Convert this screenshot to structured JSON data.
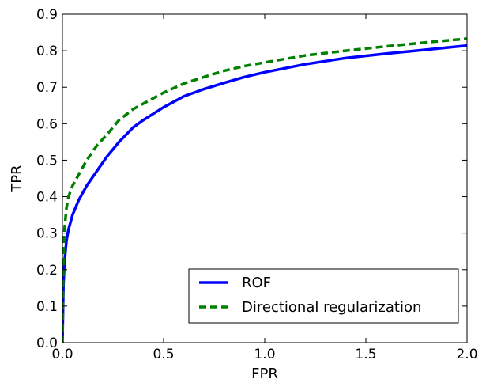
{
  "chart_data": {
    "type": "line",
    "title": "",
    "xlabel": "FPR",
    "ylabel": "TPR",
    "xlim": [
      0.0,
      2.0
    ],
    "ylim": [
      0.0,
      0.9
    ],
    "xticks": [
      0.0,
      0.5,
      1.0,
      1.5,
      2.0
    ],
    "xtick_labels": [
      "0.0",
      "0.5",
      "1.0",
      "1.5",
      "2.0"
    ],
    "yticks": [
      0.0,
      0.1,
      0.2,
      0.3,
      0.4,
      0.5,
      0.6,
      0.7,
      0.8,
      0.9
    ],
    "ytick_labels": [
      "0.0",
      "0.1",
      "0.2",
      "0.3",
      "0.4",
      "0.5",
      "0.6",
      "0.7",
      "0.8",
      "0.9"
    ],
    "grid": false,
    "legend_position": "lower-right",
    "series": [
      {
        "name": "ROF",
        "color": "#0000ff",
        "line_style": "solid",
        "x": [
          0.0,
          0.005,
          0.01,
          0.02,
          0.03,
          0.05,
          0.08,
          0.12,
          0.17,
          0.22,
          0.28,
          0.35,
          0.4,
          0.5,
          0.6,
          0.7,
          0.8,
          0.9,
          1.0,
          1.2,
          1.4,
          1.6,
          1.8,
          2.0
        ],
        "y": [
          0.0,
          0.16,
          0.22,
          0.28,
          0.31,
          0.35,
          0.39,
          0.43,
          0.47,
          0.51,
          0.55,
          0.59,
          0.61,
          0.645,
          0.675,
          0.695,
          0.712,
          0.728,
          0.741,
          0.763,
          0.78,
          0.792,
          0.803,
          0.814
        ]
      },
      {
        "name": "Directional regularization",
        "color": "#008000",
        "line_style": "dashed",
        "x": [
          0.0,
          0.005,
          0.01,
          0.02,
          0.03,
          0.05,
          0.08,
          0.12,
          0.17,
          0.22,
          0.28,
          0.35,
          0.4,
          0.5,
          0.6,
          0.7,
          0.8,
          0.9,
          1.0,
          1.2,
          1.4,
          1.6,
          1.8,
          2.0
        ],
        "y": [
          0.0,
          0.24,
          0.31,
          0.37,
          0.4,
          0.43,
          0.46,
          0.5,
          0.54,
          0.57,
          0.61,
          0.64,
          0.655,
          0.685,
          0.71,
          0.728,
          0.745,
          0.758,
          0.768,
          0.787,
          0.8,
          0.812,
          0.823,
          0.833
        ]
      }
    ]
  }
}
